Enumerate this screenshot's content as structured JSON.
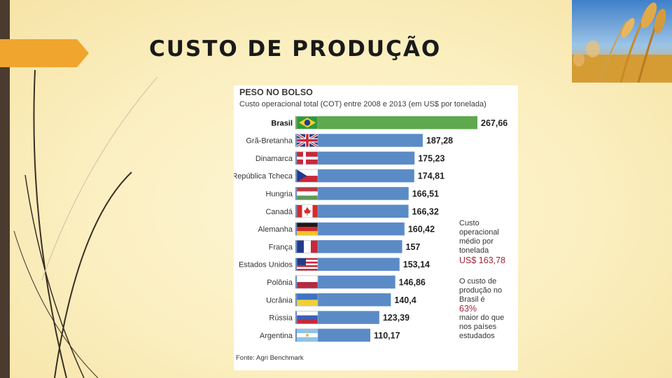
{
  "slide": {
    "title": "CUSTO DE PRODUÇÃO"
  },
  "infographic": {
    "title": "PESO NO BOLSO",
    "subtitle": "Custo operacional total (COT) entre 2008 e 2013 (em US$ por tonelada)",
    "source": "Fonte: Agri Benchmark",
    "note_avg_lines": [
      "Custo",
      "operacional",
      "médio por",
      "tonelada"
    ],
    "note_avg_value": "US$ 163,78",
    "note_brazil_lines": [
      "O custo de",
      "produção no",
      "Brasil é"
    ],
    "note_brazil_pct": "63%",
    "note_brazil_tail": [
      "maior do que",
      "nos países",
      "estudados"
    ]
  },
  "colors": {
    "bar_brazil": "#5ea84f",
    "bar_default": "#5b8bc6",
    "accent_red": "#a0273b",
    "left_bar": "#4a3b2e",
    "arrow": "#f0a52e"
  },
  "chart_data": {
    "type": "bar",
    "orientation": "horizontal",
    "title": "PESO NO BOLSO",
    "subtitle": "Custo operacional total (COT) entre 2008 e 2013 (em US$ por tonelada)",
    "categories": [
      "Brasil",
      "Grã-Bretanha",
      "Dinamarca",
      "República Tcheca",
      "Hungria",
      "Canadá",
      "Alemanha",
      "França",
      "Estados Unidos",
      "Polônia",
      "Ucrânia",
      "Rússia",
      "Argentina"
    ],
    "values": [
      267.66,
      187.28,
      175.23,
      174.81,
      166.51,
      166.32,
      160.42,
      157,
      153.14,
      146.86,
      140.4,
      123.39,
      110.17
    ],
    "value_labels": [
      "267,66",
      "187,28",
      "175,23",
      "174,81",
      "166,51",
      "166,32",
      "160,42",
      "157",
      "153,14",
      "146,86",
      "140,4",
      "123,39",
      "110,17"
    ],
    "flags": [
      "brazil-flag-icon",
      "uk-flag-icon",
      "denmark-flag-icon",
      "czech-flag-icon",
      "hungary-flag-icon",
      "canada-flag-icon",
      "germany-flag-icon",
      "france-flag-icon",
      "usa-flag-icon",
      "poland-flag-icon",
      "ukraine-flag-icon",
      "russia-flag-icon",
      "argentina-flag-icon"
    ],
    "highlight": "Brasil",
    "xlim": [
      0,
      267.66
    ],
    "grid": false,
    "legend": "none"
  }
}
